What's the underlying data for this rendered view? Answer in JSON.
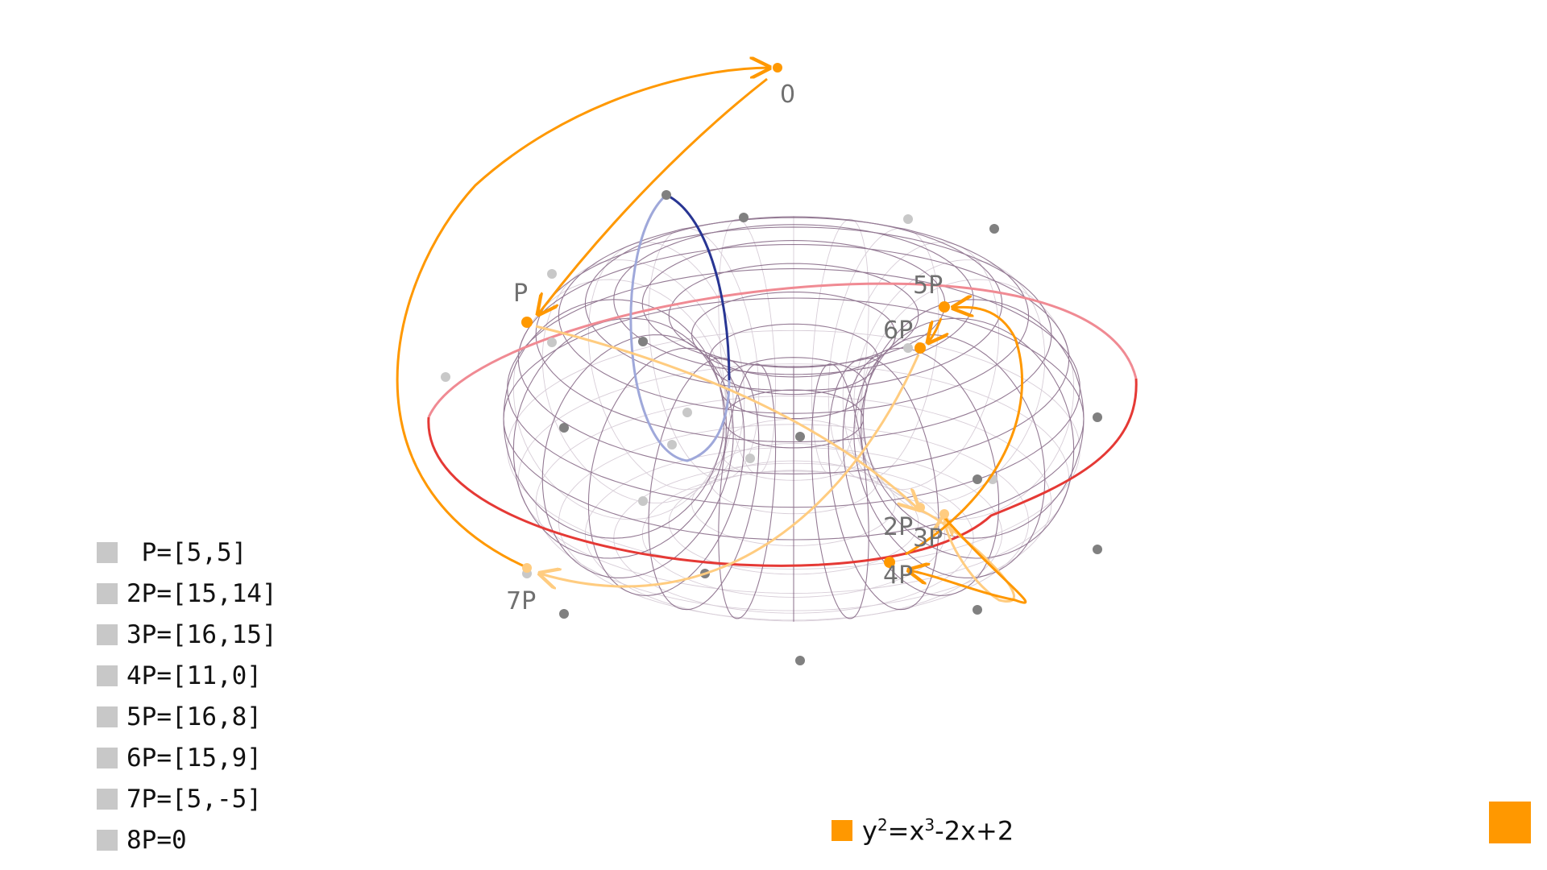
{
  "diagram": {
    "curve_equation": {
      "y_exponent": "2",
      "equals_x": "=x",
      "x_exponent": "3",
      "rest": "-2x+2"
    },
    "point_labels": {
      "zero": "0",
      "p": "P",
      "p2": "2P",
      "p3": "3P",
      "p4": "4P",
      "p5": "5P",
      "p6": "6P",
      "p7": "7P"
    },
    "legend": [
      {
        "text": " P=[5,5]"
      },
      {
        "text": "2P=[15,14]"
      },
      {
        "text": "3P=[16,15]"
      },
      {
        "text": "4P=[11,0]"
      },
      {
        "text": "5P=[16,8]"
      },
      {
        "text": "6P=[15,9]"
      },
      {
        "text": "7P=[5,-5]"
      },
      {
        "text": "8P=0"
      }
    ],
    "colors": {
      "orange": "#ff9800",
      "orange_light": "#ffcc80",
      "red_circle": "#e53935",
      "red_circle_back": "#f08a93",
      "navy_circle": "#283593",
      "navy_circle_back": "#9fa8da",
      "torus_mesh_front": "#7a5a7a",
      "torus_mesh_back": "#c7b8c7",
      "lattice_point": "#808080",
      "lattice_point_back": "#c8c8c8",
      "legend_swatch": "#c8c8c8"
    }
  }
}
